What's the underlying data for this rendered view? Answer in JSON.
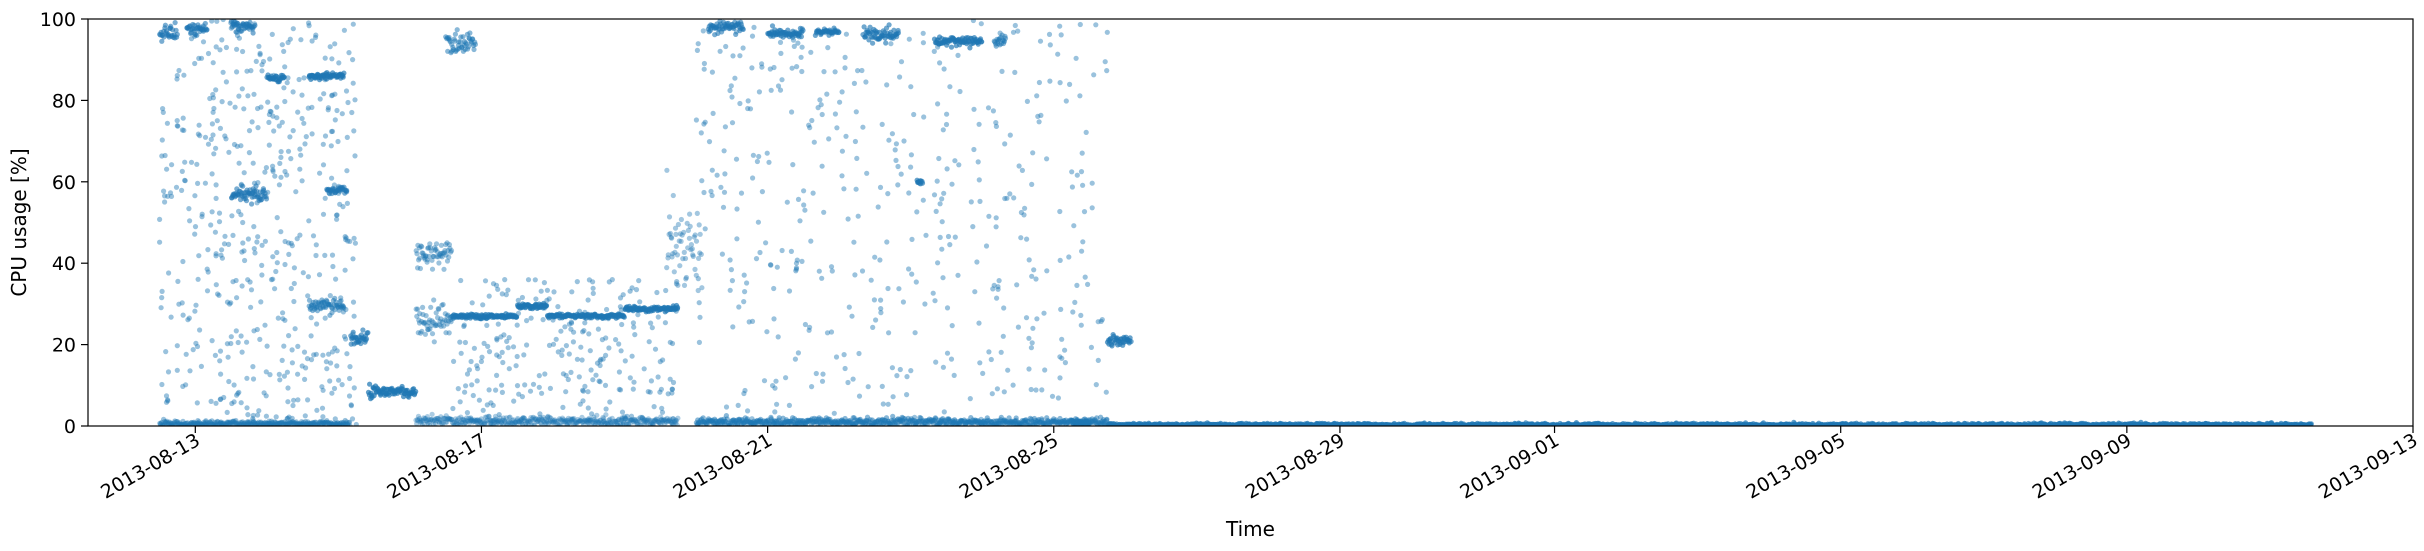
{
  "chart_data": {
    "type": "scatter",
    "title": "",
    "xlabel": "Time",
    "ylabel": "CPU usage [%]",
    "xlim": [
      "2013-08-11T12:00",
      "2013-09-13T00:00"
    ],
    "ylim": [
      0,
      100
    ],
    "x_ticks": [
      "2013-08-13",
      "2013-08-17",
      "2013-08-21",
      "2013-08-25",
      "2013-08-29",
      "2013-09-01",
      "2013-09-05",
      "2013-09-09",
      "2013-09-13"
    ],
    "y_ticks": [
      0,
      20,
      40,
      60,
      80,
      100
    ],
    "grid": false,
    "legend": "none",
    "point_color": "#1f77b4",
    "segments": [
      {
        "start": "2013-08-12T12:00",
        "end": "2013-08-12T18:00",
        "y": 96.5,
        "spread": 1.5,
        "alpha": 0.8
      },
      {
        "start": "2013-08-12T21:00",
        "end": "2013-08-13T04:00",
        "y": 97.5,
        "spread": 1.2,
        "alpha": 0.8
      },
      {
        "start": "2013-08-13T12:00",
        "end": "2013-08-13T20:00",
        "y": 98,
        "spread": 1,
        "alpha": 0.8
      },
      {
        "start": "2013-08-13T12:00",
        "end": "2013-08-14T00:00",
        "y": 57,
        "spread": 1.5,
        "alpha": 0.8
      },
      {
        "start": "2013-08-14T00:00",
        "end": "2013-08-14T06:00",
        "y": 85.5,
        "spread": 0.7,
        "alpha": 0.9
      },
      {
        "start": "2013-08-14T14:00",
        "end": "2013-08-15T02:00",
        "y": 86,
        "spread": 0.6,
        "alpha": 0.9
      },
      {
        "start": "2013-08-14T14:00",
        "end": "2013-08-15T02:00",
        "y": 29.5,
        "spread": 1.5,
        "alpha": 0.7
      },
      {
        "start": "2013-08-14T20:00",
        "end": "2013-08-15T03:00",
        "y": 58,
        "spread": 0.7,
        "alpha": 0.8
      },
      {
        "start": "2013-08-15T04:00",
        "end": "2013-08-15T10:00",
        "y": 22,
        "spread": 1.5,
        "alpha": 0.85
      },
      {
        "start": "2013-08-15T10:00",
        "end": "2013-08-16T02:00",
        "y": 8.5,
        "spread": 1.2,
        "alpha": 0.95
      },
      {
        "start": "2013-08-16T02:00",
        "end": "2013-08-16T14:00",
        "y": 42,
        "spread": 3,
        "alpha": 0.6
      },
      {
        "start": "2013-08-16T02:00",
        "end": "2013-08-16T14:00",
        "y": 26,
        "spread": 4,
        "alpha": 0.6
      },
      {
        "start": "2013-08-16T12:00",
        "end": "2013-08-16T22:00",
        "y": 94.5,
        "spread": 2.5,
        "alpha": 0.7
      },
      {
        "start": "2013-08-16T14:00",
        "end": "2013-08-17T12:00",
        "y": 27,
        "spread": 0.5,
        "alpha": 0.95
      },
      {
        "start": "2013-08-17T12:00",
        "end": "2013-08-17T22:00",
        "y": 29.5,
        "spread": 0.5,
        "alpha": 0.95
      },
      {
        "start": "2013-08-17T22:00",
        "end": "2013-08-19T00:00",
        "y": 27,
        "spread": 0.4,
        "alpha": 0.95
      },
      {
        "start": "2013-08-19T00:00",
        "end": "2013-08-19T18:00",
        "y": 28.8,
        "spread": 0.5,
        "alpha": 0.95
      },
      {
        "start": "2013-08-19T14:00",
        "end": "2013-08-20T02:00",
        "y": 44,
        "spread": 8,
        "alpha": 0.55
      },
      {
        "start": "2013-08-20T04:00",
        "end": "2013-08-20T16:00",
        "y": 98,
        "spread": 1.5,
        "alpha": 0.8
      },
      {
        "start": "2013-08-21T00:00",
        "end": "2013-08-21T12:00",
        "y": 96.5,
        "spread": 0.8,
        "alpha": 0.85
      },
      {
        "start": "2013-08-21T16:00",
        "end": "2013-08-22T00:00",
        "y": 96.8,
        "spread": 0.6,
        "alpha": 0.85
      },
      {
        "start": "2013-08-22T08:00",
        "end": "2013-08-22T20:00",
        "y": 96,
        "spread": 1.5,
        "alpha": 0.85
      },
      {
        "start": "2013-08-23T02:00",
        "end": "2013-08-23T04:00",
        "y": 60,
        "spread": 0.6,
        "alpha": 0.9
      },
      {
        "start": "2013-08-23T08:00",
        "end": "2013-08-24T00:00",
        "y": 94.5,
        "spread": 1,
        "alpha": 0.9
      },
      {
        "start": "2013-08-24T04:00",
        "end": "2013-08-24T08:00",
        "y": 94.5,
        "spread": 1.5,
        "alpha": 0.7
      },
      {
        "start": "2013-08-25T06:00",
        "end": "2013-08-25T12:00",
        "y": 0.8,
        "spread": 0.5,
        "alpha": 0.9
      },
      {
        "start": "2013-08-25T18:00",
        "end": "2013-08-26T02:00",
        "y": 21,
        "spread": 1,
        "alpha": 0.9
      },
      {
        "start": "2013-08-12T12:00",
        "end": "2013-08-15T04:00",
        "y": 0.6,
        "spread": 0.5,
        "alpha": 0.6
      },
      {
        "start": "2013-08-16T02:00",
        "end": "2013-08-19T18:00",
        "y": 1.2,
        "spread": 1,
        "alpha": 0.5
      },
      {
        "start": "2013-08-20T00:00",
        "end": "2013-08-25T18:00",
        "y": 1,
        "spread": 0.8,
        "alpha": 0.7
      },
      {
        "start": "2013-08-25T18:00",
        "end": "2013-09-11T14:00",
        "y": 0.3,
        "spread": 0.3,
        "alpha": 0.95
      }
    ],
    "scattered_regions": [
      {
        "start": "2013-08-12T12:00",
        "end": "2013-08-15T06:00",
        "ymin": 0,
        "ymax": 100,
        "count": 520
      },
      {
        "start": "2013-08-16T14:00",
        "end": "2013-08-19T18:00",
        "ymin": 0,
        "ymax": 36,
        "count": 260
      },
      {
        "start": "2013-08-20T00:00",
        "end": "2013-08-25T18:00",
        "ymin": 0,
        "ymax": 100,
        "count": 460
      }
    ]
  }
}
